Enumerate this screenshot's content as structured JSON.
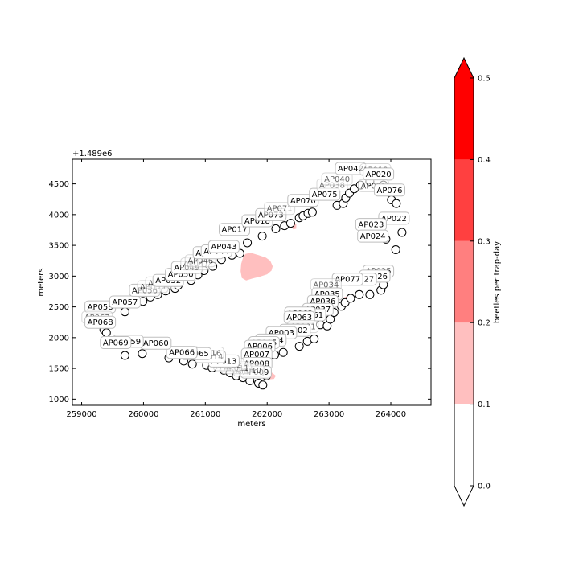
{
  "chart_data": {
    "type": "scatter",
    "xlabel": "meters",
    "ylabel": "meters",
    "y_offset_label": "+1.489e6",
    "xlim": [
      258850,
      264650
    ],
    "ylim_offset": [
      900,
      4900
    ],
    "x_ticks": [
      259000,
      260000,
      261000,
      262000,
      263000,
      264000
    ],
    "y_ticks_offset": [
      1000,
      1500,
      2000,
      2500,
      3000,
      3500,
      4000,
      4500
    ],
    "traps": [
      {
        "x": 259360,
        "y": 2130
      },
      {
        "x": 259400,
        "y": 2080
      },
      {
        "x": 259700,
        "y": 2420
      },
      {
        "x": 259700,
        "y": 1710
      },
      {
        "x": 259980,
        "y": 1740
      },
      {
        "x": 259990,
        "y": 2590
      },
      {
        "x": 260110,
        "y": 2660
      },
      {
        "x": 260230,
        "y": 2700
      },
      {
        "x": 260360,
        "y": 2760
      },
      {
        "x": 260410,
        "y": 1670
      },
      {
        "x": 260510,
        "y": 2800
      },
      {
        "x": 260560,
        "y": 2850
      },
      {
        "x": 260650,
        "y": 1620
      },
      {
        "x": 260770,
        "y": 2930
      },
      {
        "x": 260790,
        "y": 1570
      },
      {
        "x": 260880,
        "y": 3020
      },
      {
        "x": 260980,
        "y": 3090
      },
      {
        "x": 261020,
        "y": 1550
      },
      {
        "x": 261110,
        "y": 1510
      },
      {
        "x": 261120,
        "y": 3160
      },
      {
        "x": 261180,
        "y": 1570
      },
      {
        "x": 261260,
        "y": 3270
      },
      {
        "x": 261300,
        "y": 1470
      },
      {
        "x": 261400,
        "y": 1430
      },
      {
        "x": 261430,
        "y": 3340
      },
      {
        "x": 261500,
        "y": 1380
      },
      {
        "x": 261560,
        "y": 3370
      },
      {
        "x": 261610,
        "y": 1350
      },
      {
        "x": 261680,
        "y": 3540
      },
      {
        "x": 261720,
        "y": 1300
      },
      {
        "x": 261860,
        "y": 1260
      },
      {
        "x": 261930,
        "y": 1230
      },
      {
        "x": 261920,
        "y": 3650
      },
      {
        "x": 261990,
        "y": 1380
      },
      {
        "x": 262000,
        "y": 1520
      },
      {
        "x": 262120,
        "y": 1720
      },
      {
        "x": 262140,
        "y": 3770
      },
      {
        "x": 262260,
        "y": 1760
      },
      {
        "x": 262280,
        "y": 3820
      },
      {
        "x": 262380,
        "y": 3860
      },
      {
        "x": 262520,
        "y": 1860
      },
      {
        "x": 262520,
        "y": 3950
      },
      {
        "x": 262580,
        "y": 3980
      },
      {
        "x": 262660,
        "y": 4020
      },
      {
        "x": 262650,
        "y": 1940
      },
      {
        "x": 262730,
        "y": 4040
      },
      {
        "x": 262760,
        "y": 1980
      },
      {
        "x": 262860,
        "y": 2210
      },
      {
        "x": 262970,
        "y": 2190
      },
      {
        "x": 263020,
        "y": 2300
      },
      {
        "x": 263080,
        "y": 2410
      },
      {
        "x": 263130,
        "y": 4150
      },
      {
        "x": 263200,
        "y": 2510
      },
      {
        "x": 263230,
        "y": 4180
      },
      {
        "x": 263260,
        "y": 2570
      },
      {
        "x": 263270,
        "y": 4270
      },
      {
        "x": 263330,
        "y": 4350
      },
      {
        "x": 263350,
        "y": 2640
      },
      {
        "x": 263410,
        "y": 4420
      },
      {
        "x": 263490,
        "y": 2700
      },
      {
        "x": 263510,
        "y": 4480
      },
      {
        "x": 263660,
        "y": 2700
      },
      {
        "x": 263660,
        "y": 4540
      },
      {
        "x": 263840,
        "y": 2770
      },
      {
        "x": 263880,
        "y": 4480
      },
      {
        "x": 263880,
        "y": 2860
      },
      {
        "x": 263920,
        "y": 3600
      },
      {
        "x": 264010,
        "y": 4240
      },
      {
        "x": 264080,
        "y": 3430
      },
      {
        "x": 264090,
        "y": 4180
      },
      {
        "x": 264180,
        "y": 3710
      }
    ],
    "labels": [
      {
        "text": "AP058",
        "x": 259300,
        "y": 2500,
        "alpha": 1
      },
      {
        "text": "AP057",
        "x": 259700,
        "y": 2580,
        "alpha": 1
      },
      {
        "text": "AP067",
        "x": 259250,
        "y": 2330,
        "alpha": 0.6
      },
      {
        "text": "AP068",
        "x": 259300,
        "y": 2250,
        "alpha": 1
      },
      {
        "text": "AP056",
        "x": 260020,
        "y": 2770,
        "alpha": 1
      },
      {
        "text": "AP055",
        "x": 260150,
        "y": 2830,
        "alpha": 0.6
      },
      {
        "text": "AP053",
        "x": 260280,
        "y": 2890,
        "alpha": 0.6
      },
      {
        "text": "AP052",
        "x": 260400,
        "y": 2930,
        "alpha": 1
      },
      {
        "text": "AP050",
        "x": 260600,
        "y": 3030,
        "alpha": 1
      },
      {
        "text": "AP049",
        "x": 260700,
        "y": 3140,
        "alpha": 1
      },
      {
        "text": "AP047",
        "x": 260850,
        "y": 3200,
        "alpha": 0.6
      },
      {
        "text": "AP046",
        "x": 260920,
        "y": 3250,
        "alpha": 0.6
      },
      {
        "text": "AP045",
        "x": 261050,
        "y": 3380,
        "alpha": 1
      },
      {
        "text": "AP044",
        "x": 261180,
        "y": 3410,
        "alpha": 1
      },
      {
        "text": "AP043",
        "x": 261300,
        "y": 3480,
        "alpha": 1
      },
      {
        "text": "AP017",
        "x": 261470,
        "y": 3760,
        "alpha": 1
      },
      {
        "text": "AP018",
        "x": 261840,
        "y": 3900,
        "alpha": 1
      },
      {
        "text": "AP073",
        "x": 262060,
        "y": 4000,
        "alpha": 1
      },
      {
        "text": "AP071",
        "x": 262200,
        "y": 4100,
        "alpha": 0.6
      },
      {
        "text": "AP070",
        "x": 262580,
        "y": 4230,
        "alpha": 1
      },
      {
        "text": "AP075",
        "x": 262930,
        "y": 4330,
        "alpha": 1
      },
      {
        "text": "AP038",
        "x": 263050,
        "y": 4480,
        "alpha": 0.6
      },
      {
        "text": "AP040",
        "x": 263130,
        "y": 4580,
        "alpha": 0.6
      },
      {
        "text": "AP042",
        "x": 263350,
        "y": 4750,
        "alpha": 1
      },
      {
        "text": "AP019",
        "x": 263750,
        "y": 4730,
        "alpha": 0.6
      },
      {
        "text": "AP020",
        "x": 263800,
        "y": 4660,
        "alpha": 1
      },
      {
        "text": "AP021",
        "x": 263720,
        "y": 4470,
        "alpha": 0.6
      },
      {
        "text": "AP076",
        "x": 263980,
        "y": 4400,
        "alpha": 1
      },
      {
        "text": "AP022",
        "x": 264050,
        "y": 3940,
        "alpha": 1
      },
      {
        "text": "AP023",
        "x": 263680,
        "y": 3840,
        "alpha": 1
      },
      {
        "text": "AP024",
        "x": 263710,
        "y": 3650,
        "alpha": 1
      },
      {
        "text": "AP025",
        "x": 263800,
        "y": 3080,
        "alpha": 1
      },
      {
        "text": "AP026",
        "x": 263740,
        "y": 3000,
        "alpha": 1
      },
      {
        "text": "AP027",
        "x": 263520,
        "y": 2950,
        "alpha": 1
      },
      {
        "text": "AP077",
        "x": 263300,
        "y": 2950,
        "alpha": 1
      },
      {
        "text": "AP034",
        "x": 262950,
        "y": 2860,
        "alpha": 0.6
      },
      {
        "text": "AP035",
        "x": 262970,
        "y": 2710,
        "alpha": 1
      },
      {
        "text": "AP036",
        "x": 262900,
        "y": 2590,
        "alpha": 1
      },
      {
        "text": "AP037",
        "x": 262820,
        "y": 2460,
        "alpha": 1
      },
      {
        "text": "AP061",
        "x": 262700,
        "y": 2370,
        "alpha": 1
      },
      {
        "text": "AP062",
        "x": 262530,
        "y": 2400,
        "alpha": 1
      },
      {
        "text": "AP063",
        "x": 262520,
        "y": 2330,
        "alpha": 1
      },
      {
        "text": "AP001",
        "x": 262580,
        "y": 2180,
        "alpha": 0.6
      },
      {
        "text": "AP002",
        "x": 262450,
        "y": 2120,
        "alpha": 1
      },
      {
        "text": "AP003",
        "x": 262230,
        "y": 2080,
        "alpha": 1
      },
      {
        "text": "AP004",
        "x": 262060,
        "y": 1960,
        "alpha": 1
      },
      {
        "text": "AP005",
        "x": 261950,
        "y": 1920,
        "alpha": 1
      },
      {
        "text": "AP006",
        "x": 261880,
        "y": 1860,
        "alpha": 1
      },
      {
        "text": "AP007",
        "x": 261830,
        "y": 1730,
        "alpha": 1
      },
      {
        "text": "AP008",
        "x": 261830,
        "y": 1580,
        "alpha": 1
      },
      {
        "text": "AP009",
        "x": 261820,
        "y": 1440,
        "alpha": 1
      },
      {
        "text": "AP010",
        "x": 261700,
        "y": 1470,
        "alpha": 0.6
      },
      {
        "text": "AP011",
        "x": 261500,
        "y": 1510,
        "alpha": 0.6
      },
      {
        "text": "AP012",
        "x": 261380,
        "y": 1560,
        "alpha": 0.6
      },
      {
        "text": "AP013",
        "x": 261300,
        "y": 1620,
        "alpha": 1
      },
      {
        "text": "AP014",
        "x": 261080,
        "y": 1690,
        "alpha": 1
      },
      {
        "text": "AP016",
        "x": 261050,
        "y": 1750,
        "alpha": 0.6
      },
      {
        "text": "AP064",
        "x": 260650,
        "y": 1760,
        "alpha": 0.6
      },
      {
        "text": "AP065",
        "x": 260850,
        "y": 1740,
        "alpha": 1
      },
      {
        "text": "AP066",
        "x": 260620,
        "y": 1760,
        "alpha": 1
      },
      {
        "text": "AP060",
        "x": 260200,
        "y": 1910,
        "alpha": 1
      },
      {
        "text": "AP059",
        "x": 259750,
        "y": 1940,
        "alpha": 1
      },
      {
        "text": "AP069",
        "x": 259550,
        "y": 1920,
        "alpha": 1
      }
    ],
    "density_regions": [
      {
        "level": "0.1-0.2",
        "points": [
          [
            261610,
            3300
          ],
          [
            261650,
            3360
          ],
          [
            261730,
            3380
          ],
          [
            261860,
            3340
          ],
          [
            261980,
            3300
          ],
          [
            262050,
            3250
          ],
          [
            262090,
            3160
          ],
          [
            262070,
            3090
          ],
          [
            262000,
            3030
          ],
          [
            261880,
            2990
          ],
          [
            261760,
            2960
          ],
          [
            261660,
            2930
          ],
          [
            261590,
            2970
          ],
          [
            261570,
            3080
          ],
          [
            261580,
            3200
          ]
        ]
      },
      {
        "level": "0.1-0.2",
        "points": [
          [
            262400,
            3870
          ],
          [
            262470,
            3850
          ],
          [
            262470,
            3770
          ],
          [
            262420,
            3760
          ],
          [
            262390,
            3810
          ]
        ]
      },
      {
        "level": "0.1-0.2",
        "points": [
          [
            261880,
            1410
          ],
          [
            261960,
            1440
          ],
          [
            262080,
            1430
          ],
          [
            262140,
            1380
          ],
          [
            262110,
            1330
          ],
          [
            262010,
            1320
          ],
          [
            261910,
            1340
          ]
        ]
      },
      {
        "level": "0.1-0.2",
        "points": [
          [
            262090,
            1730
          ],
          [
            262150,
            1760
          ],
          [
            262190,
            1720
          ],
          [
            262160,
            1680
          ],
          [
            262100,
            1690
          ]
        ]
      },
      {
        "level": "0.1-0.2",
        "points": [
          [
            263230,
            2650
          ],
          [
            263280,
            2670
          ],
          [
            263310,
            2620
          ],
          [
            263260,
            2590
          ]
        ]
      }
    ]
  },
  "colorbar": {
    "label": "beetles per trap-day",
    "ticks": [
      "0.0",
      "0.1",
      "0.2",
      "0.3",
      "0.4",
      "0.5"
    ],
    "levels": [
      {
        "from": 0.0,
        "to": 0.1,
        "color": "#ffffff"
      },
      {
        "from": 0.1,
        "to": 0.2,
        "color": "#ffbfbf"
      },
      {
        "from": 0.2,
        "to": 0.3,
        "color": "#ff7f7f"
      },
      {
        "from": 0.3,
        "to": 0.4,
        "color": "#ff4040"
      },
      {
        "from": 0.4,
        "to": 0.5,
        "color": "#ff0000"
      }
    ],
    "extend_min_color": "#ffffff",
    "extend_max_color": "#ff0000"
  },
  "colors": {
    "density": "#ffbfbf",
    "marker_fill": "#ffffff",
    "marker_edge": "#000000",
    "label_box_edge": "#bfbfbf"
  }
}
